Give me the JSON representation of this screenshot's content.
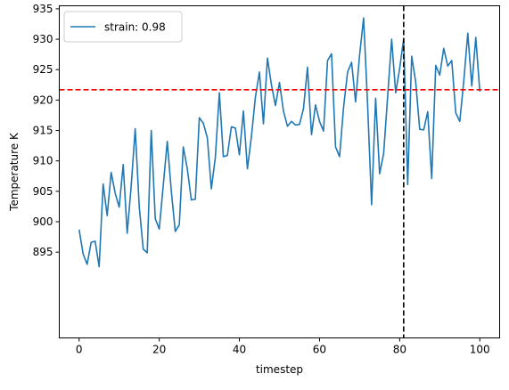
{
  "chart_data": {
    "type": "line",
    "title": "",
    "xlabel": "timestep",
    "ylabel": "Temperature K",
    "xlim": [
      -4.95,
      104.95
    ],
    "ylim": [
      880.9,
      935.5
    ],
    "xticks": [
      0,
      20,
      40,
      60,
      80,
      100
    ],
    "yticks": [
      895,
      900,
      905,
      910,
      915,
      920,
      925,
      930,
      935
    ],
    "grid": false,
    "legend_position": "upper-left",
    "series": [
      {
        "name": "strain: 0.98",
        "color": "#1f77b4",
        "x": [
          0,
          1,
          2,
          3,
          4,
          5,
          6,
          7,
          8,
          9,
          10,
          11,
          12,
          13,
          14,
          15,
          16,
          17,
          18,
          19,
          20,
          21,
          22,
          23,
          24,
          25,
          26,
          27,
          28,
          29,
          30,
          31,
          32,
          33,
          34,
          35,
          36,
          37,
          38,
          39,
          40,
          41,
          42,
          43,
          44,
          45,
          46,
          47,
          48,
          49,
          50,
          51,
          52,
          53,
          54,
          55,
          56,
          57,
          58,
          59,
          60,
          61,
          62,
          63,
          64,
          65,
          66,
          67,
          68,
          69,
          70,
          71,
          72,
          73,
          74,
          75,
          76,
          77,
          78,
          79,
          80,
          81,
          82,
          83,
          84,
          85,
          86,
          87,
          88,
          89,
          90,
          91,
          92,
          93,
          94,
          95,
          96,
          97,
          98,
          99,
          100
        ],
        "y": [
          898.7,
          894.7,
          893.0,
          896.6,
          896.8,
          892.6,
          906.2,
          901.0,
          908.1,
          904.7,
          902.4,
          909.4,
          898.1,
          905.9,
          915.3,
          902.5,
          895.5,
          894.9,
          915.0,
          900.5,
          898.8,
          906.0,
          913.2,
          905.1,
          898.4,
          899.5,
          912.3,
          908.7,
          903.6,
          903.7,
          917.1,
          916.2,
          913.8,
          905.4,
          910.6,
          921.2,
          910.7,
          910.9,
          915.6,
          915.4,
          911.0,
          918.2,
          908.7,
          914.0,
          920.5,
          924.6,
          916.1,
          926.9,
          922.5,
          919.1,
          922.9,
          918.2,
          915.7,
          916.5,
          915.9,
          916.0,
          918.6,
          925.4,
          914.3,
          919.2,
          916.5,
          914.9,
          926.5,
          927.6,
          912.3,
          910.7,
          918.8,
          924.6,
          926.2,
          919.7,
          927.4,
          933.5,
          919.2,
          902.8,
          920.3,
          907.9,
          911.2,
          920.6,
          930.0,
          921.2,
          925.2,
          930.1,
          906.1,
          927.2,
          923.0,
          915.2,
          915.1,
          918.1,
          907.1,
          925.7,
          924.1,
          928.5,
          925.6,
          926.5,
          917.9,
          916.5,
          923.1,
          931.0,
          922.3,
          930.3,
          921.4
        ]
      }
    ],
    "reference_lines": [
      {
        "orientation": "horizontal",
        "value": 921.7,
        "color": "#ff0000",
        "style": "dashed"
      },
      {
        "orientation": "vertical",
        "value": 81,
        "color": "#000000",
        "style": "dashed"
      }
    ]
  }
}
